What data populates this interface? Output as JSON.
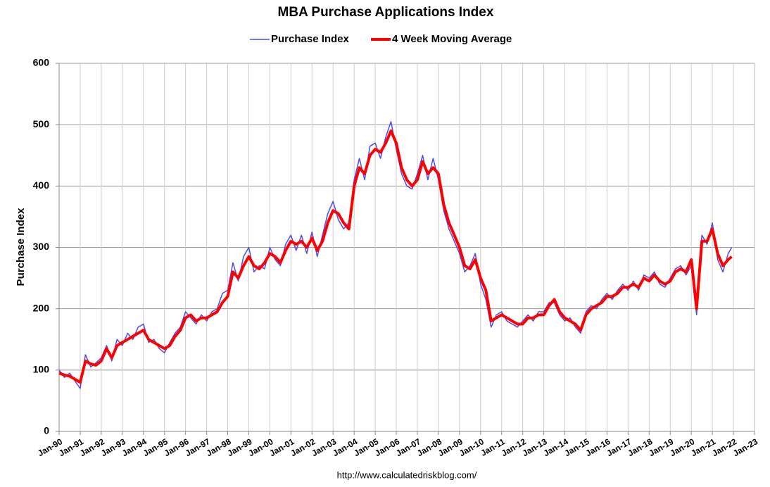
{
  "chart_data": {
    "type": "line",
    "title": "MBA Purchase Applications Index",
    "y_label": "Purchase Index",
    "source": "http://www.calculatedriskblog.com/",
    "legend": "top",
    "grid": true,
    "ylim": [
      0,
      600
    ],
    "yticks": [
      0,
      100,
      200,
      300,
      400,
      500,
      600
    ],
    "xlim": [
      "1990-01",
      "2023-01"
    ],
    "xticks": [
      {
        "value": "1990-01",
        "label": "Jan-90"
      },
      {
        "value": "1991-01",
        "label": "Jan-91"
      },
      {
        "value": "1992-01",
        "label": "Jan-92"
      },
      {
        "value": "1993-01",
        "label": "Jan-93"
      },
      {
        "value": "1994-01",
        "label": "Jan-94"
      },
      {
        "value": "1995-01",
        "label": "Jan-95"
      },
      {
        "value": "1996-01",
        "label": "Jan-96"
      },
      {
        "value": "1997-01",
        "label": "Jan-97"
      },
      {
        "value": "1998-01",
        "label": "Jan-98"
      },
      {
        "value": "1999-01",
        "label": "Jan-99"
      },
      {
        "value": "2000-01",
        "label": "Jan-00"
      },
      {
        "value": "2001-01",
        "label": "Jan-01"
      },
      {
        "value": "2002-01",
        "label": "Jan-02"
      },
      {
        "value": "2003-01",
        "label": "Jan-03"
      },
      {
        "value": "2004-01",
        "label": "Jan-04"
      },
      {
        "value": "2005-01",
        "label": "Jan-05"
      },
      {
        "value": "2006-01",
        "label": "Jan-06"
      },
      {
        "value": "2007-01",
        "label": "Jan-07"
      },
      {
        "value": "2008-01",
        "label": "Jan-08"
      },
      {
        "value": "2009-01",
        "label": "Jan-09"
      },
      {
        "value": "2010-01",
        "label": "Jan-10"
      },
      {
        "value": "2011-01",
        "label": "Jan-11"
      },
      {
        "value": "2012-01",
        "label": "Jan-12"
      },
      {
        "value": "2013-01",
        "label": "Jan-13"
      },
      {
        "value": "2014-01",
        "label": "Jan-14"
      },
      {
        "value": "2015-01",
        "label": "Jan-15"
      },
      {
        "value": "2016-01",
        "label": "Jan-16"
      },
      {
        "value": "2017-01",
        "label": "Jan-17"
      },
      {
        "value": "2018-01",
        "label": "Jan-18"
      },
      {
        "value": "2019-01",
        "label": "Jan-19"
      },
      {
        "value": "2020-01",
        "label": "Jan-20"
      },
      {
        "value": "2021-01",
        "label": "Jan-21"
      },
      {
        "value": "2022-01",
        "label": "Jan-22"
      },
      {
        "value": "2023-01",
        "label": "Jan-23"
      }
    ],
    "x": [
      "1990-01",
      "1990-04",
      "1990-07",
      "1990-10",
      "1991-01",
      "1991-04",
      "1991-07",
      "1991-10",
      "1992-01",
      "1992-04",
      "1992-07",
      "1992-10",
      "1993-01",
      "1993-04",
      "1993-07",
      "1993-10",
      "1994-01",
      "1994-04",
      "1994-07",
      "1994-10",
      "1995-01",
      "1995-04",
      "1995-07",
      "1995-10",
      "1996-01",
      "1996-04",
      "1996-07",
      "1996-10",
      "1997-01",
      "1997-04",
      "1997-07",
      "1997-10",
      "1998-01",
      "1998-04",
      "1998-07",
      "1998-10",
      "1999-01",
      "1999-04",
      "1999-07",
      "1999-10",
      "2000-01",
      "2000-04",
      "2000-07",
      "2000-10",
      "2001-01",
      "2001-04",
      "2001-07",
      "2001-10",
      "2002-01",
      "2002-04",
      "2002-07",
      "2002-10",
      "2003-01",
      "2003-04",
      "2003-07",
      "2003-10",
      "2004-01",
      "2004-04",
      "2004-07",
      "2004-10",
      "2005-01",
      "2005-04",
      "2005-07",
      "2005-10",
      "2006-01",
      "2006-04",
      "2006-07",
      "2006-10",
      "2007-01",
      "2007-04",
      "2007-07",
      "2007-10",
      "2008-01",
      "2008-04",
      "2008-07",
      "2008-10",
      "2009-01",
      "2009-04",
      "2009-07",
      "2009-10",
      "2010-01",
      "2010-04",
      "2010-07",
      "2010-10",
      "2011-01",
      "2011-04",
      "2011-07",
      "2011-10",
      "2012-01",
      "2012-04",
      "2012-07",
      "2012-10",
      "2013-01",
      "2013-04",
      "2013-07",
      "2013-10",
      "2014-01",
      "2014-04",
      "2014-07",
      "2014-10",
      "2015-01",
      "2015-04",
      "2015-07",
      "2015-10",
      "2016-01",
      "2016-04",
      "2016-07",
      "2016-10",
      "2017-01",
      "2017-04",
      "2017-07",
      "2017-10",
      "2018-01",
      "2018-04",
      "2018-07",
      "2018-10",
      "2019-01",
      "2019-04",
      "2019-07",
      "2019-10",
      "2020-01",
      "2020-04",
      "2020-07",
      "2020-10",
      "2021-01",
      "2021-04",
      "2021-07",
      "2021-10",
      "2021-12"
    ],
    "series": [
      {
        "name": "Purchase Index",
        "color": "#4b4bf0",
        "width": 1.5,
        "values": [
          100,
          88,
          95,
          82,
          70,
          125,
          105,
          112,
          120,
          140,
          115,
          150,
          140,
          160,
          150,
          170,
          175,
          145,
          150,
          135,
          128,
          145,
          160,
          170,
          195,
          185,
          175,
          190,
          180,
          195,
          200,
          225,
          230,
          275,
          245,
          285,
          300,
          260,
          270,
          265,
          300,
          280,
          270,
          305,
          320,
          295,
          320,
          290,
          325,
          285,
          320,
          355,
          375,
          345,
          330,
          340,
          410,
          445,
          410,
          465,
          470,
          445,
          480,
          505,
          460,
          420,
          400,
          395,
          420,
          450,
          410,
          445,
          410,
          360,
          330,
          310,
          290,
          260,
          270,
          290,
          240,
          215,
          170,
          190,
          195,
          180,
          175,
          170,
          180,
          190,
          180,
          195,
          195,
          210,
          210,
          190,
          180,
          185,
          170,
          160,
          195,
          205,
          200,
          215,
          225,
          215,
          230,
          240,
          230,
          245,
          230,
          255,
          250,
          260,
          240,
          235,
          250,
          265,
          270,
          255,
          270,
          190,
          320,
          305,
          340,
          280,
          260,
          290,
          300
        ]
      },
      {
        "name": "4 Week Moving Average",
        "color": "#ff0000",
        "width": 4,
        "values": [
          95,
          92,
          90,
          85,
          80,
          115,
          110,
          108,
          115,
          135,
          120,
          140,
          145,
          150,
          155,
          160,
          165,
          150,
          145,
          140,
          135,
          140,
          155,
          165,
          185,
          190,
          180,
          185,
          185,
          190,
          195,
          210,
          220,
          260,
          250,
          270,
          285,
          270,
          265,
          275,
          290,
          285,
          275,
          295,
          310,
          305,
          310,
          300,
          315,
          295,
          310,
          340,
          360,
          355,
          340,
          330,
          400,
          430,
          420,
          450,
          460,
          455,
          470,
          490,
          470,
          430,
          410,
          400,
          410,
          440,
          420,
          430,
          420,
          370,
          340,
          320,
          300,
          270,
          265,
          280,
          250,
          230,
          180,
          185,
          190,
          185,
          180,
          175,
          175,
          185,
          185,
          190,
          190,
          205,
          215,
          195,
          185,
          180,
          175,
          165,
          190,
          200,
          205,
          210,
          220,
          220,
          225,
          235,
          235,
          240,
          235,
          250,
          245,
          255,
          245,
          240,
          245,
          260,
          265,
          260,
          280,
          200,
          310,
          310,
          330,
          290,
          270,
          280,
          285
        ]
      }
    ]
  }
}
